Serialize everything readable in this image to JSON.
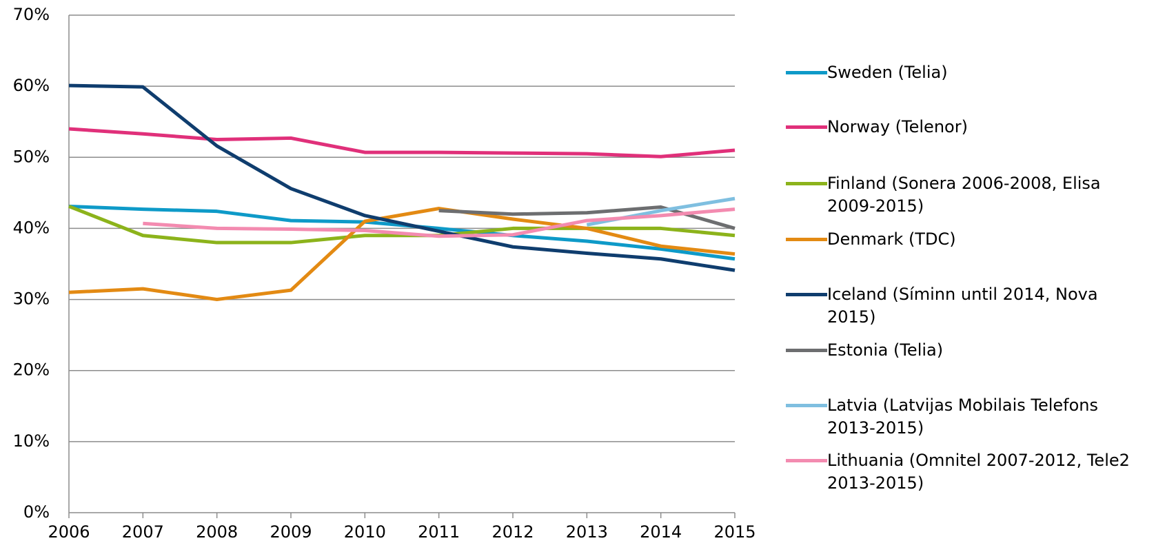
{
  "chart_data": {
    "type": "line",
    "x": [
      2006,
      2007,
      2008,
      2009,
      2010,
      2011,
      2012,
      2013,
      2014,
      2015
    ],
    "xlim": [
      2006,
      2015
    ],
    "xticks": [
      2006,
      2007,
      2008,
      2009,
      2010,
      2011,
      2012,
      2013,
      2014,
      2015
    ],
    "ylim": [
      0,
      70
    ],
    "yticks": [
      {
        "value": 0,
        "label": "0%"
      },
      {
        "value": 10,
        "label": "10%"
      },
      {
        "value": 20,
        "label": "20%"
      },
      {
        "value": 30,
        "label": "30%"
      },
      {
        "value": 40,
        "label": "40%"
      },
      {
        "value": 50,
        "label": "50%"
      },
      {
        "value": 60,
        "label": "60%"
      },
      {
        "value": 70,
        "label": "70%"
      }
    ],
    "grid": true,
    "legend": "right",
    "series": [
      {
        "name": "Sweden (Telia)",
        "color": "#0e9ac8",
        "values": [
          43.1,
          42.7,
          42.4,
          41.1,
          40.9,
          40.0,
          39.0,
          38.2,
          37.1,
          35.7
        ]
      },
      {
        "name": "Norway (Telenor)",
        "color": "#e0307a",
        "values": [
          54.0,
          53.3,
          52.5,
          52.7,
          50.7,
          50.7,
          50.6,
          50.5,
          50.1,
          51.0
        ]
      },
      {
        "name": "Finland (Sonera 2006-2008, Elisa 2009-2015)",
        "color": "#8cb31b",
        "values": [
          43.1,
          39.0,
          38.0,
          38.0,
          39.0,
          39.0,
          40.0,
          40.0,
          40.0,
          39.0
        ]
      },
      {
        "name": "Denmark (TDC)",
        "color": "#e38a13",
        "values": [
          31.0,
          31.5,
          30.0,
          31.3,
          41.0,
          42.8,
          41.3,
          40.0,
          37.5,
          36.4
        ]
      },
      {
        "name": "Iceland (Síminn until 2014, Nova 2015)",
        "color": "#0f3d6e",
        "values": [
          60.1,
          59.9,
          51.6,
          45.6,
          41.8,
          39.6,
          37.4,
          36.5,
          35.7,
          34.1
        ]
      },
      {
        "name": "Estonia (Telia)",
        "color": "#6d6e70",
        "values": [
          null,
          null,
          null,
          null,
          null,
          42.5,
          42.0,
          42.2,
          43.0,
          40.0
        ]
      },
      {
        "name": "Latvia (Latvijas Mobilais Telefons 2013-2015)",
        "color": "#7fbfe0",
        "values": [
          null,
          null,
          null,
          null,
          null,
          null,
          null,
          40.5,
          42.5,
          44.2
        ]
      },
      {
        "name": "Lithuania (Omnitel 2007-2012, Tele2 2013-2015)",
        "color": "#f38bb0",
        "values": [
          null,
          40.7,
          40.0,
          39.9,
          39.7,
          38.9,
          39.1,
          41.1,
          41.8,
          42.7
        ]
      }
    ]
  }
}
